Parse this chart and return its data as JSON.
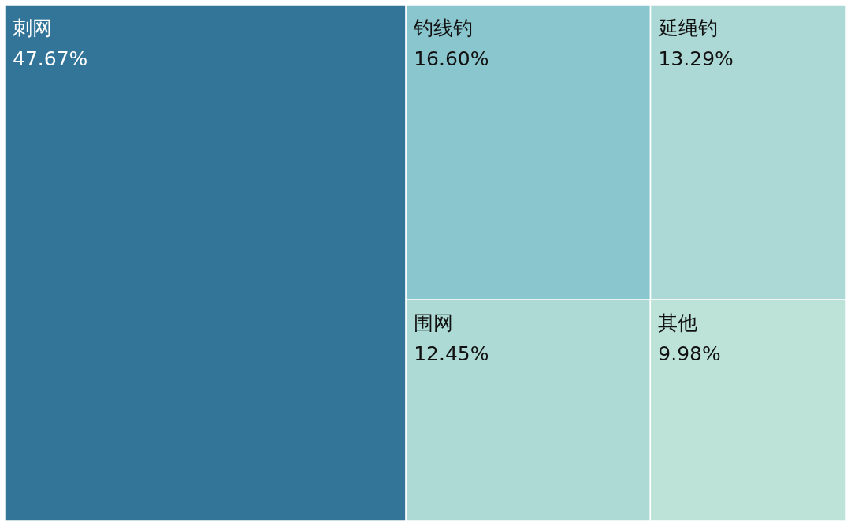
{
  "chart_data": {
    "type": "other",
    "categories": [
      "刺网",
      "钓线钓",
      "延绳钓",
      "围网",
      "其他"
    ],
    "values": [
      47.67,
      16.6,
      13.29,
      12.45,
      9.98
    ],
    "value_labels": [
      "47.67%",
      "16.60%",
      "13.29%",
      "12.45%",
      "9.98%"
    ],
    "colors": [
      "#327599",
      "#8ac6cd",
      "#acd9d6",
      "#addad5",
      "#bde3d9"
    ]
  }
}
